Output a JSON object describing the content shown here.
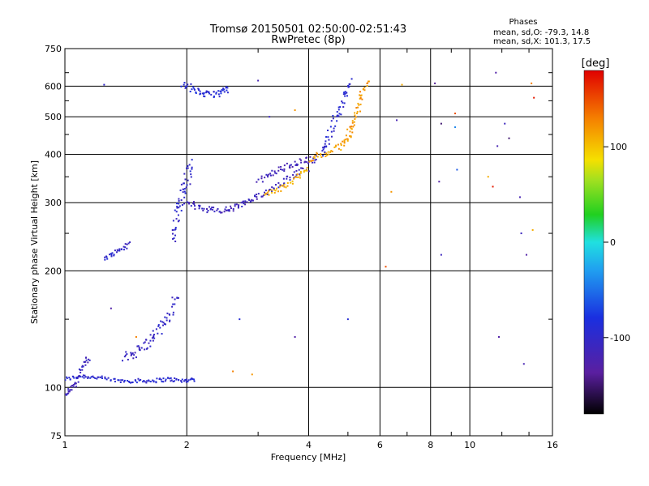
{
  "chart_data": {
    "type": "scatter",
    "title": "Tromsø 20150501 02:50:00-02:51:43",
    "subtitle": "RwPretec (8p)",
    "xlabel": "Frequency [MHz]",
    "ylabel": "Stationary phase Virtual Height [km]",
    "x_scale": "log",
    "y_scale": "log",
    "xlim": [
      1,
      16
    ],
    "ylim": [
      75,
      750
    ],
    "x_ticks": [
      1,
      2,
      4,
      6,
      8,
      10,
      16
    ],
    "x_tick_labels": [
      "1",
      "2",
      "4",
      "6",
      "8",
      "10",
      "16"
    ],
    "x_minor_ticks": [
      3,
      5,
      7,
      9,
      12,
      14
    ],
    "y_ticks": [
      75,
      100,
      200,
      300,
      400,
      500,
      600,
      750
    ],
    "y_tick_labels": [
      "75",
      "100",
      "200",
      "300",
      "400",
      "500",
      "600",
      "750"
    ],
    "y_minor_ticks": [
      150,
      250,
      350,
      450,
      550,
      650
    ],
    "grid": true,
    "annotations": {
      "heading": "Phases",
      "line_o": "mean, sd,O: -79.3, 14.8",
      "line_x": "mean, sd,X: 101.3, 17.5"
    },
    "colorbar": {
      "label": "[deg]",
      "range": [
        -180,
        180
      ],
      "ticks": [
        100,
        0,
        -100
      ],
      "tick_labels": [
        "100",
        "0",
        "-100"
      ],
      "colormap": "rainbow"
    },
    "colors": {
      "blue": "#1f3fe0",
      "deep_blue": "#1a2fc8",
      "light_blue": "#3a8ff0",
      "yellow": "#f5d000",
      "orange": "#f5a000",
      "red": "#e02020",
      "purple": "#6a1fb0",
      "cyan": "#20c0e0"
    },
    "series_curves": [
      {
        "phase": -95,
        "x": [
          1.0,
          1.1,
          1.2,
          1.35,
          1.5,
          1.65,
          1.8,
          1.95,
          2.1
        ],
        "y": [
          105,
          107,
          106,
          104,
          104,
          104,
          105,
          104,
          105
        ],
        "spread": 0.012
      },
      {
        "phase": -110,
        "x": [
          1.0,
          1.05,
          1.1,
          1.15
        ],
        "y": [
          96,
          100,
          112,
          120
        ],
        "spread": 0.02
      },
      {
        "phase": -105,
        "x": [
          1.4,
          1.5,
          1.6,
          1.7,
          1.8,
          1.9
        ],
        "y": [
          118,
          124,
          130,
          140,
          152,
          175
        ],
        "spread": 0.03
      },
      {
        "phase": -100,
        "x": [
          1.25,
          1.35,
          1.45
        ],
        "y": [
          215,
          225,
          235
        ],
        "spread": 0.015
      },
      {
        "phase": -100,
        "x": [
          1.85,
          1.9,
          1.95,
          2.0,
          2.05
        ],
        "y": [
          240,
          280,
          310,
          340,
          380
        ],
        "spread": 0.04
      },
      {
        "phase": -110,
        "x": [
          2.0,
          2.2,
          2.4,
          2.6,
          2.8,
          3.0,
          3.3,
          3.6,
          4.0
        ],
        "y": [
          300,
          290,
          285,
          290,
          300,
          310,
          330,
          350,
          370
        ],
        "spread": 0.02
      },
      {
        "phase": -90,
        "x": [
          1.95,
          2.1,
          2.25,
          2.4,
          2.55
        ],
        "y": [
          610,
          585,
          570,
          575,
          590
        ],
        "spread": 0.02
      },
      {
        "phase": -115,
        "x": [
          3.0,
          3.3,
          3.6,
          3.9,
          4.2
        ],
        "y": [
          340,
          360,
          375,
          385,
          390
        ],
        "spread": 0.02
      },
      {
        "phase": 110,
        "x": [
          3.1,
          3.4,
          3.7,
          4.0
        ],
        "y": [
          315,
          325,
          345,
          370
        ],
        "spread": 0.015
      },
      {
        "phase": 115,
        "x": [
          4.0,
          4.4,
          4.8,
          5.1
        ],
        "y": [
          390,
          400,
          420,
          450
        ],
        "spread": 0.02
      },
      {
        "phase": 120,
        "x": [
          5.0,
          5.2,
          5.4,
          5.6
        ],
        "y": [
          450,
          500,
          560,
          620
        ],
        "spread": 0.03
      },
      {
        "phase": -95,
        "x": [
          4.3,
          4.5,
          4.7,
          4.9,
          5.1
        ],
        "y": [
          400,
          450,
          500,
          560,
          620
        ],
        "spread": 0.03
      }
    ],
    "series_points": [
      {
        "x": 1.25,
        "y": 605,
        "phase": -100
      },
      {
        "x": 1.3,
        "y": 160,
        "phase": -130
      },
      {
        "x": 1.5,
        "y": 135,
        "phase": 130
      },
      {
        "x": 2.6,
        "y": 110,
        "phase": 130
      },
      {
        "x": 2.9,
        "y": 108,
        "phase": 120
      },
      {
        "x": 2.7,
        "y": 150,
        "phase": -90
      },
      {
        "x": 3.2,
        "y": 500,
        "phase": -110
      },
      {
        "x": 3.0,
        "y": 620,
        "phase": -120
      },
      {
        "x": 3.7,
        "y": 135,
        "phase": -130
      },
      {
        "x": 3.7,
        "y": 520,
        "phase": 120
      },
      {
        "x": 5.0,
        "y": 150,
        "phase": -90
      },
      {
        "x": 6.2,
        "y": 205,
        "phase": 150
      },
      {
        "x": 6.4,
        "y": 320,
        "phase": 120
      },
      {
        "x": 6.6,
        "y": 490,
        "phase": -120
      },
      {
        "x": 6.8,
        "y": 605,
        "phase": 110
      },
      {
        "x": 8.2,
        "y": 610,
        "phase": -140
      },
      {
        "x": 8.4,
        "y": 340,
        "phase": -130
      },
      {
        "x": 8.5,
        "y": 480,
        "phase": -150
      },
      {
        "x": 8.5,
        "y": 220,
        "phase": -110
      },
      {
        "x": 9.2,
        "y": 510,
        "phase": 150
      },
      {
        "x": 9.2,
        "y": 470,
        "phase": -40
      },
      {
        "x": 9.3,
        "y": 365,
        "phase": -60
      },
      {
        "x": 11.1,
        "y": 350,
        "phase": 110
      },
      {
        "x": 11.4,
        "y": 330,
        "phase": 170
      },
      {
        "x": 11.6,
        "y": 650,
        "phase": -130
      },
      {
        "x": 11.7,
        "y": 420,
        "phase": -120
      },
      {
        "x": 11.8,
        "y": 135,
        "phase": -130
      },
      {
        "x": 12.2,
        "y": 480,
        "phase": -110
      },
      {
        "x": 12.5,
        "y": 440,
        "phase": -150
      },
      {
        "x": 13.3,
        "y": 310,
        "phase": -120
      },
      {
        "x": 13.4,
        "y": 250,
        "phase": -110
      },
      {
        "x": 13.6,
        "y": 115,
        "phase": -120
      },
      {
        "x": 13.8,
        "y": 220,
        "phase": -130
      },
      {
        "x": 14.2,
        "y": 610,
        "phase": 130
      },
      {
        "x": 14.3,
        "y": 255,
        "phase": 110
      },
      {
        "x": 14.4,
        "y": 560,
        "phase": 170
      }
    ]
  }
}
